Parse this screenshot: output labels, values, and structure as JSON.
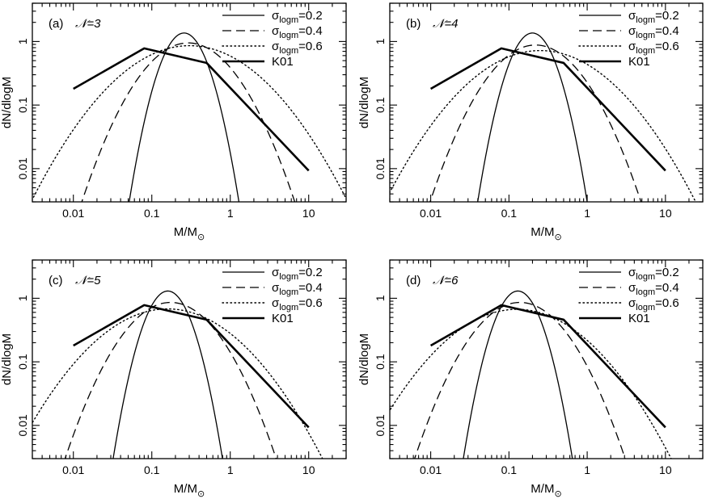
{
  "chart_data": [
    {
      "type": "line",
      "panel_label": "(a)",
      "n_label": "𝒩=3",
      "xlabel": "M/M",
      "xlabel_sub": "⊙",
      "ylabel": "dN/dlogM",
      "xscale": "log",
      "yscale": "log",
      "xlim": [
        0.003,
        30
      ],
      "ylim": [
        0.003,
        4.0
      ],
      "xticks": [
        0.01,
        0.1,
        1,
        10
      ],
      "xtick_labels": [
        "0.01",
        "0.1",
        "1",
        "10"
      ],
      "yticks": [
        0.01,
        0.1,
        1
      ],
      "ytick_labels": [
        "0.01",
        "0.1",
        "1"
      ],
      "legend_position": "top-right",
      "series": [
        {
          "name": "σ_logm=0.2",
          "legend_main": "σ",
          "legend_sub": "logm",
          "legend_value": "=0.2",
          "style": "solid",
          "mu": -0.589,
          "sigma": 0.2,
          "peak": 1.36
        },
        {
          "name": "σ_logm=0.4",
          "legend_main": "σ",
          "legend_sub": "logm",
          "legend_value": "=0.4",
          "style": "dashed",
          "mu": -0.535,
          "sigma": 0.4,
          "peak": 0.95
        },
        {
          "name": "σ_logm=0.6",
          "legend_main": "σ",
          "legend_sub": "logm",
          "legend_value": "=0.6",
          "style": "dotted",
          "mu": -0.52,
          "sigma": 0.6,
          "peak": 0.86
        },
        {
          "name": "K01",
          "legend_main": "K01",
          "legend_sub": "",
          "legend_value": "",
          "style": "thick",
          "x": [
            0.01,
            0.08,
            0.5,
            10
          ],
          "y": [
            0.18,
            0.78,
            0.46,
            0.0093
          ]
        }
      ]
    },
    {
      "type": "line",
      "panel_label": "(b)",
      "n_label": "𝒩=4",
      "xlabel": "M/M",
      "xlabel_sub": "⊙",
      "ylabel": "dN/dlogM",
      "xscale": "log",
      "yscale": "log",
      "xlim": [
        0.003,
        30
      ],
      "ylim": [
        0.003,
        4.0
      ],
      "xticks": [
        0.01,
        0.1,
        1,
        10
      ],
      "xtick_labels": [
        "0.01",
        "0.1",
        "1",
        "10"
      ],
      "yticks": [
        0.01,
        0.1,
        1
      ],
      "ytick_labels": [
        "0.01",
        "0.1",
        "1"
      ],
      "legend_position": "top-right",
      "series": [
        {
          "name": "σ_logm=0.2",
          "legend_main": "σ",
          "legend_sub": "logm",
          "legend_value": "=0.2",
          "style": "solid",
          "mu": -0.7,
          "sigma": 0.2,
          "peak": 1.36
        },
        {
          "name": "σ_logm=0.4",
          "legend_main": "σ",
          "legend_sub": "logm",
          "legend_value": "=0.4",
          "style": "dashed",
          "mu": -0.66,
          "sigma": 0.4,
          "peak": 0.88
        },
        {
          "name": "σ_logm=0.6",
          "legend_main": "σ",
          "legend_sub": "logm",
          "legend_value": "=0.6",
          "style": "dotted",
          "mu": -0.6,
          "sigma": 0.6,
          "peak": 0.72
        },
        {
          "name": "K01",
          "legend_main": "K01",
          "legend_sub": "",
          "legend_value": "",
          "style": "thick",
          "x": [
            0.01,
            0.08,
            0.5,
            10
          ],
          "y": [
            0.18,
            0.78,
            0.46,
            0.0093
          ]
        }
      ]
    },
    {
      "type": "line",
      "panel_label": "(c)",
      "n_label": "𝒩=5",
      "xlabel": "M/M",
      "xlabel_sub": "⊙",
      "ylabel": "dN/dlogM",
      "xscale": "log",
      "yscale": "log",
      "xlim": [
        0.003,
        30
      ],
      "ylim": [
        0.003,
        4.0
      ],
      "xticks": [
        0.01,
        0.1,
        1,
        10
      ],
      "xtick_labels": [
        "0.01",
        "0.1",
        "1",
        "10"
      ],
      "yticks": [
        0.01,
        0.1,
        1
      ],
      "ytick_labels": [
        "0.01",
        "0.1",
        "1"
      ],
      "legend_position": "top-right",
      "series": [
        {
          "name": "σ_logm=0.2",
          "legend_main": "σ",
          "legend_sub": "logm",
          "legend_value": "=0.2",
          "style": "solid",
          "mu": -0.796,
          "sigma": 0.2,
          "peak": 1.3
        },
        {
          "name": "σ_logm=0.4",
          "legend_main": "σ",
          "legend_sub": "logm",
          "legend_value": "=0.4",
          "style": "dashed",
          "mu": -0.76,
          "sigma": 0.4,
          "peak": 0.86
        },
        {
          "name": "σ_logm=0.6",
          "legend_main": "σ",
          "legend_sub": "logm",
          "legend_value": "=0.6",
          "style": "dotted",
          "mu": -0.8,
          "sigma": 0.6,
          "peak": 0.68
        },
        {
          "name": "K01",
          "legend_main": "K01",
          "legend_sub": "",
          "legend_value": "",
          "style": "thick",
          "x": [
            0.01,
            0.08,
            0.5,
            10
          ],
          "y": [
            0.18,
            0.78,
            0.46,
            0.0093
          ]
        }
      ]
    },
    {
      "type": "line",
      "panel_label": "(d)",
      "n_label": "𝒩=6",
      "xlabel": "M/M",
      "xlabel_sub": "⊙",
      "ylabel": "dN/dlogM",
      "xscale": "log",
      "yscale": "log",
      "xlim": [
        0.003,
        30
      ],
      "ylim": [
        0.003,
        4.0
      ],
      "xticks": [
        0.01,
        0.1,
        1,
        10
      ],
      "xtick_labels": [
        "0.01",
        "0.1",
        "1",
        "10"
      ],
      "yticks": [
        0.01,
        0.1,
        1
      ],
      "ytick_labels": [
        "0.01",
        "0.1",
        "1"
      ],
      "legend_position": "top-right",
      "series": [
        {
          "name": "σ_logm=0.2",
          "legend_main": "σ",
          "legend_sub": "logm",
          "legend_value": "=0.2",
          "style": "solid",
          "mu": -0.886,
          "sigma": 0.2,
          "peak": 1.3
        },
        {
          "name": "σ_logm=0.4",
          "legend_main": "σ",
          "legend_sub": "logm",
          "legend_value": "=0.4",
          "style": "dashed",
          "mu": -0.86,
          "sigma": 0.4,
          "peak": 0.86
        },
        {
          "name": "σ_logm=0.6",
          "legend_main": "σ",
          "legend_sub": "logm",
          "legend_value": "=0.6",
          "style": "dotted",
          "mu": -0.9,
          "sigma": 0.6,
          "peak": 0.67
        },
        {
          "name": "K01",
          "legend_main": "K01",
          "legend_sub": "",
          "legend_value": "",
          "style": "thick",
          "x": [
            0.01,
            0.08,
            0.5,
            10
          ],
          "y": [
            0.18,
            0.78,
            0.46,
            0.0093
          ]
        }
      ]
    }
  ]
}
